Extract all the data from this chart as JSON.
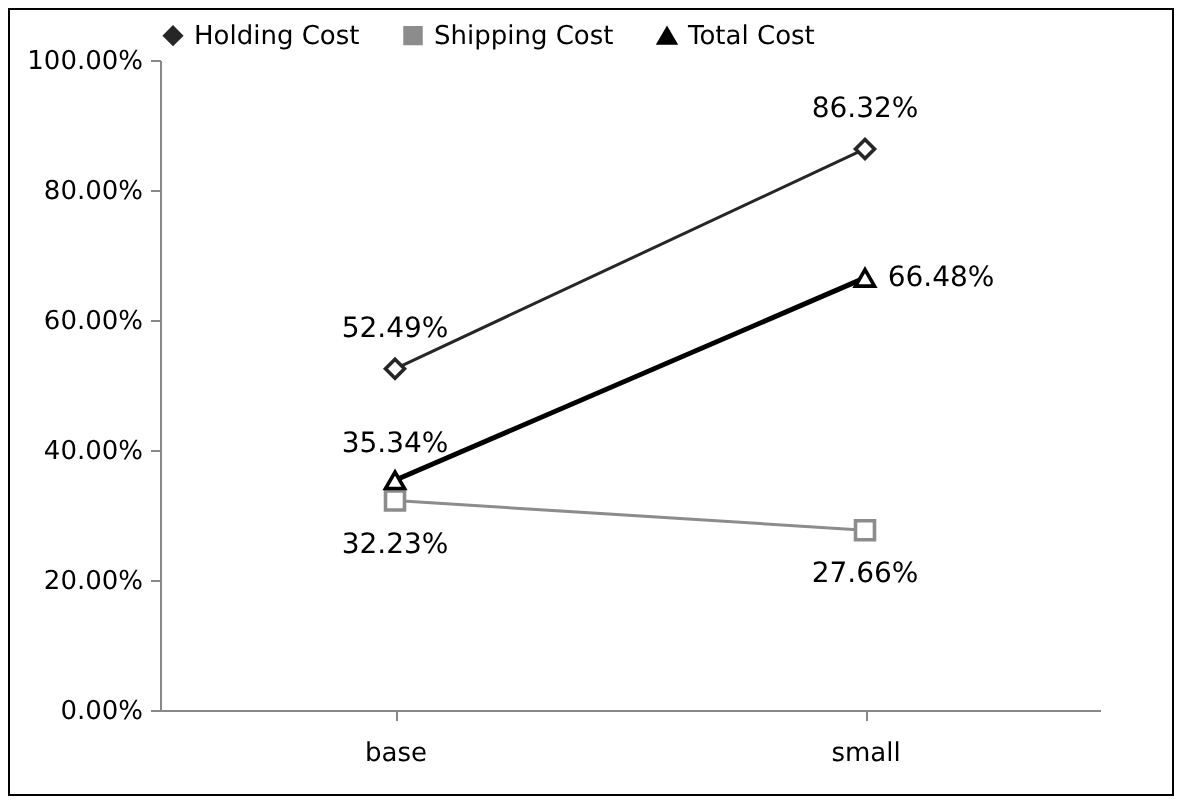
{
  "chart_data": {
    "type": "line",
    "categories": [
      "base",
      "small"
    ],
    "series": [
      {
        "name": "Holding Cost",
        "color": "#262626",
        "marker": "diamond",
        "values": [
          52.49,
          86.32
        ],
        "value_labels": [
          "52.49%",
          "86.32%"
        ]
      },
      {
        "name": "Shipping Cost",
        "color": "#8c8c8c",
        "marker": "square",
        "values": [
          32.23,
          27.66
        ],
        "value_labels": [
          "32.23%",
          "27.66%"
        ]
      },
      {
        "name": "Total Cost",
        "color": "#000000",
        "marker": "triangle",
        "values": [
          35.34,
          66.48
        ],
        "value_labels": [
          "35.34%",
          "66.48%"
        ]
      }
    ],
    "ylim": [
      0,
      100
    ],
    "yticks": [
      {
        "value": 0,
        "label": "0.00%"
      },
      {
        "value": 20,
        "label": "20.00%"
      },
      {
        "value": 40,
        "label": "40.00%"
      },
      {
        "value": 60,
        "label": "60.00%"
      },
      {
        "value": 80,
        "label": "80.00%"
      },
      {
        "value": 100,
        "label": "100.00%"
      }
    ],
    "legend": "top",
    "grid": false
  }
}
